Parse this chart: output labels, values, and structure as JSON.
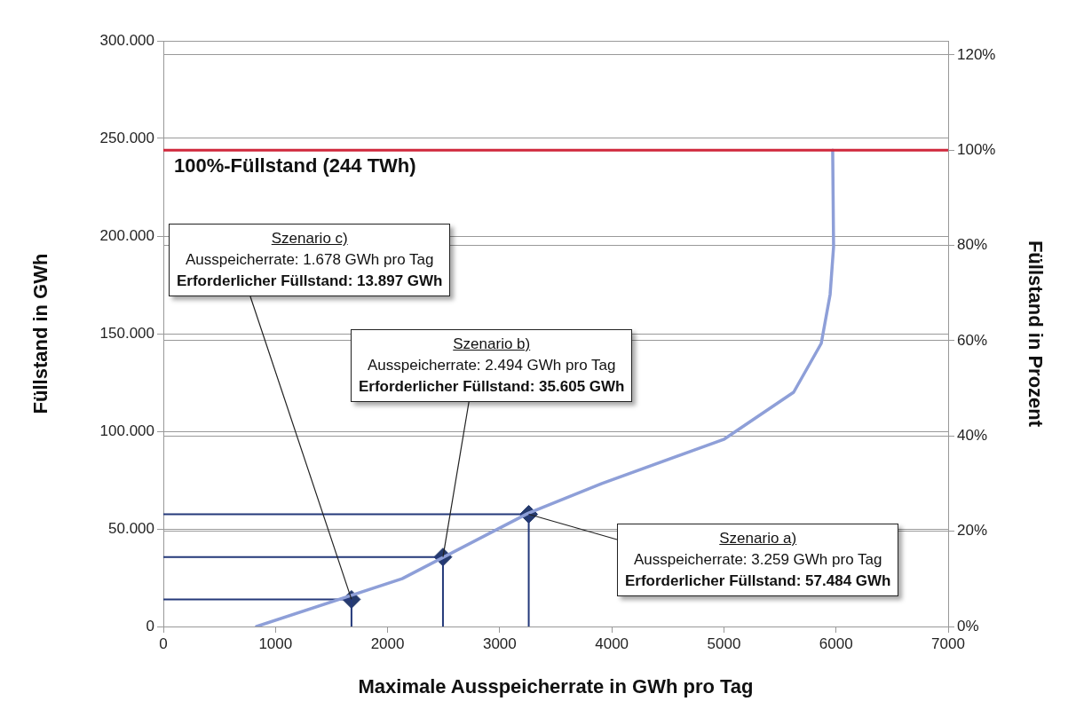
{
  "chart_data": {
    "type": "line",
    "xlabel": "Maximale Ausspeicherrate in GWh pro Tag",
    "ylabel": "Füllstand in GWh",
    "y2label": "Füllstand in Prozent",
    "xlim": [
      0,
      7000
    ],
    "xticks": [
      0,
      1000,
      2000,
      3000,
      4000,
      5000,
      6000,
      7000
    ],
    "ylim": [
      0,
      300000
    ],
    "yticks": [
      {
        "value": 0,
        "label": "0"
      },
      {
        "value": 50000,
        "label": "50.000"
      },
      {
        "value": 100000,
        "label": "100.000"
      },
      {
        "value": 150000,
        "label": "150.000"
      },
      {
        "value": 200000,
        "label": "200.000"
      },
      {
        "value": 250000,
        "label": "250.000"
      },
      {
        "value": 300000,
        "label": "300.000"
      }
    ],
    "y2lim": [
      0,
      122.95
    ],
    "y2ticks": [
      {
        "value": 0,
        "label": "0%"
      },
      {
        "value": 20,
        "label": "20%"
      },
      {
        "value": 40,
        "label": "40%"
      },
      {
        "value": 60,
        "label": "60%"
      },
      {
        "value": 80,
        "label": "80%"
      },
      {
        "value": 100,
        "label": "100%"
      },
      {
        "value": 120,
        "label": "120%"
      }
    ],
    "grid": "y",
    "legend": false,
    "series": [
      {
        "color": "#8e9fd8",
        "marker": "none",
        "x": [
          831,
          2130,
          3254,
          3911,
          5004,
          5622,
          5868,
          5947,
          5978,
          5970
        ],
        "values": [
          0,
          24500,
          58000,
          73200,
          96000,
          120000,
          145000,
          170000,
          194500,
          244000
        ]
      },
      {
        "color": "#24397a",
        "marker": "none",
        "x": [
          0,
          1678,
          1678
        ],
        "values": [
          13897,
          13897,
          0
        ]
      },
      {
        "color": "#24397a",
        "marker": "none",
        "x": [
          0,
          2494,
          2494
        ],
        "values": [
          35605,
          35605,
          0
        ]
      },
      {
        "color": "#24397a",
        "marker": "none",
        "x": [
          0,
          3259,
          3259
        ],
        "values": [
          57484,
          57484,
          0
        ]
      },
      {
        "type": "scatter",
        "color": "#263b6e",
        "marker": "diamond",
        "x": [
          1678,
          2494,
          3259
        ],
        "values": [
          13897,
          35605,
          57484
        ]
      }
    ],
    "ref_lines": [
      {
        "axis": "y",
        "value": 244000,
        "label": "100%-Füllstand (244 TWh)",
        "color": "#d0283c"
      }
    ],
    "annotations": [
      {
        "text": "Szenario c)\nAusspeicherrate: 1.678 GWh pro Tag\nErforderlicher Füllstand: 13.897 GWh",
        "x": 1678,
        "y": 13897
      },
      {
        "text": "Szenario b)\nAusspeicherrate: 2.494 GWh pro Tag\nErforderlicher Füllstand: 35.605 GWh",
        "x": 2494,
        "y": 35605
      },
      {
        "text": "Szenario a)\nAusspeicherrate: 3.259 GWh pro Tag\nErforderlicher Füllstand: 57.484 GWh",
        "x": 3259,
        "y": 57484
      }
    ]
  }
}
